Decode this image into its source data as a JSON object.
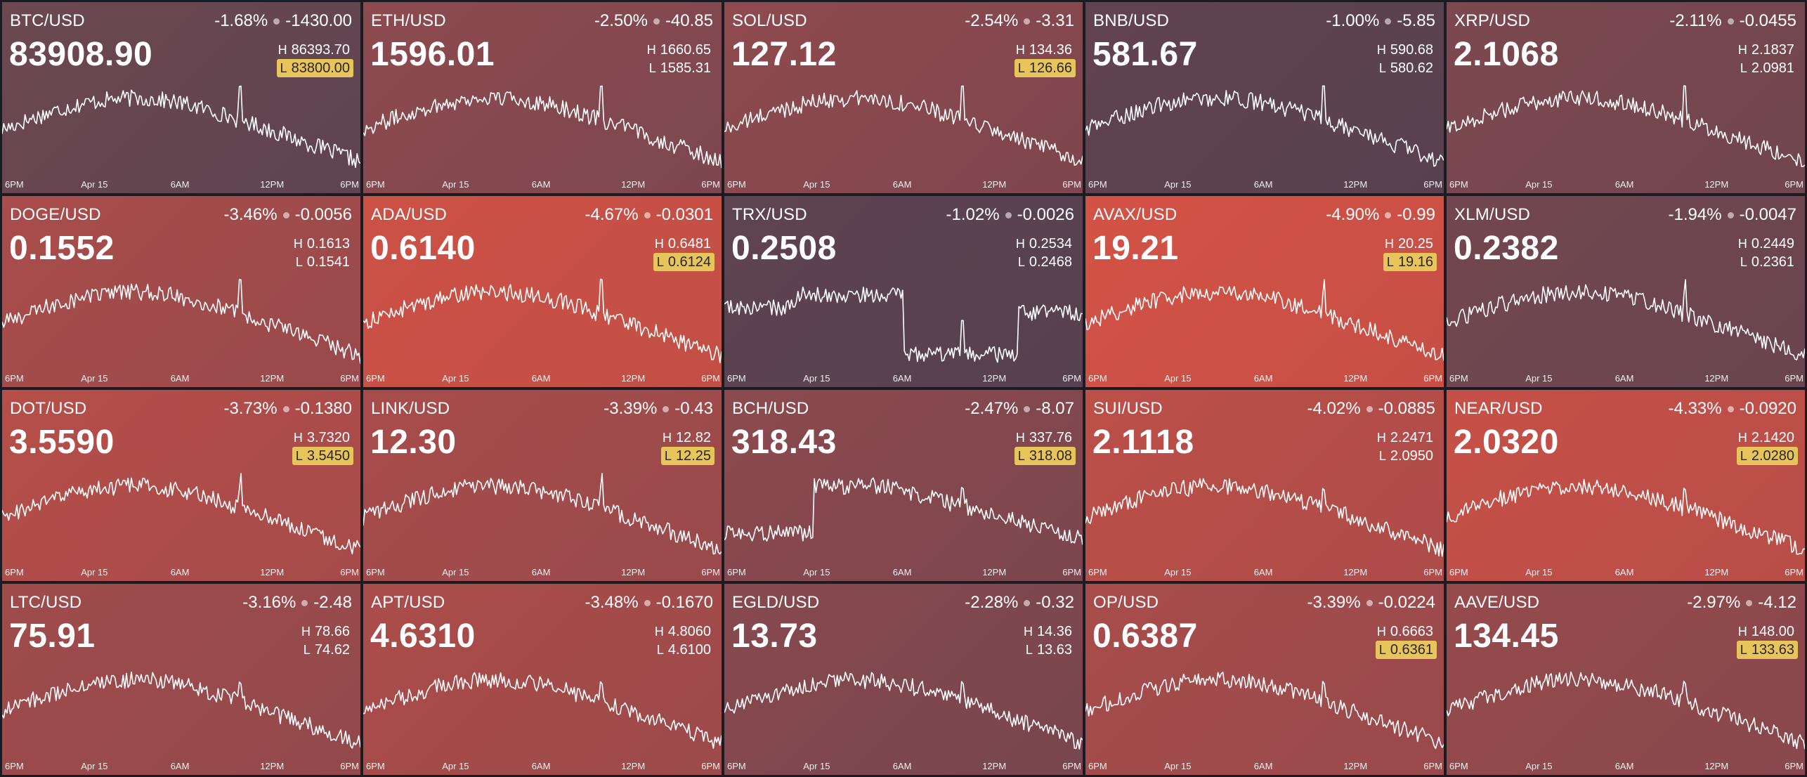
{
  "time_axis": [
    "6PM",
    "Apr 15",
    "6AM",
    "12PM",
    "6PM"
  ],
  "tiles": [
    {
      "symbol": "BTC/USD",
      "pct": "-1.68%",
      "abs": "-1430.00",
      "price": "83908.90",
      "high": "86393.70",
      "low": "83800.00",
      "low_hit": true,
      "bg": "#6c4850",
      "bg2": "#5e4450"
    },
    {
      "symbol": "ETH/USD",
      "pct": "-2.50%",
      "abs": "-40.85",
      "price": "1596.01",
      "high": "1660.65",
      "low": "1585.31",
      "low_hit": false,
      "bg": "#8d4a4f",
      "bg2": "#7d474f"
    },
    {
      "symbol": "SOL/USD",
      "pct": "-2.54%",
      "abs": "-3.31",
      "price": "127.12",
      "high": "134.36",
      "low": "126.66",
      "low_hit": true,
      "bg": "#8f4a4e",
      "bg2": "#7e464e"
    },
    {
      "symbol": "BNB/USD",
      "pct": "-1.00%",
      "abs": "-5.85",
      "price": "581.67",
      "high": "590.68",
      "low": "580.62",
      "low_hit": false,
      "bg": "#61434f",
      "bg2": "#58414f"
    },
    {
      "symbol": "XRP/USD",
      "pct": "-2.11%",
      "abs": "-0.0455",
      "price": "2.1068",
      "high": "2.1837",
      "low": "2.0981",
      "low_hit": false,
      "bg": "#7d484f",
      "bg2": "#70464f"
    },
    {
      "symbol": "DOGE/USD",
      "pct": "-3.46%",
      "abs": "-0.0056",
      "price": "0.1552",
      "high": "0.1613",
      "low": "0.1541",
      "low_hit": false,
      "bg": "#a94c4b",
      "bg2": "#994a4c"
    },
    {
      "symbol": "ADA/USD",
      "pct": "-4.67%",
      "abs": "-0.0301",
      "price": "0.6140",
      "high": "0.6481",
      "low": "0.6124",
      "low_hit": true,
      "bg": "#cd5145",
      "bg2": "#c24f46"
    },
    {
      "symbol": "TRX/USD",
      "pct": "-1.02%",
      "abs": "-0.0026",
      "price": "0.2508",
      "high": "0.2534",
      "low": "0.2468",
      "low_hit": false,
      "bg": "#5f4350",
      "bg2": "#56414f"
    },
    {
      "symbol": "AVAX/USD",
      "pct": "-4.90%",
      "abs": "-0.99",
      "price": "19.21",
      "high": "20.25",
      "low": "19.16",
      "low_hit": true,
      "bg": "#d35245",
      "bg2": "#c74f45"
    },
    {
      "symbol": "XLM/USD",
      "pct": "-1.94%",
      "abs": "-0.0047",
      "price": "0.2382",
      "high": "0.2449",
      "low": "0.2361",
      "low_hit": false,
      "bg": "#73464f",
      "bg2": "#69454f"
    },
    {
      "symbol": "DOT/USD",
      "pct": "-3.73%",
      "abs": "-0.1380",
      "price": "3.5590",
      "high": "3.7320",
      "low": "3.5450",
      "low_hit": true,
      "bg": "#b64e49",
      "bg2": "#a64b4a"
    },
    {
      "symbol": "LINK/USD",
      "pct": "-3.39%",
      "abs": "-0.43",
      "price": "12.30",
      "high": "12.82",
      "low": "12.25",
      "low_hit": true,
      "bg": "#a84c4b",
      "bg2": "#994a4c"
    },
    {
      "symbol": "BCH/USD",
      "pct": "-2.47%",
      "abs": "-8.07",
      "price": "318.43",
      "high": "337.76",
      "low": "318.08",
      "low_hit": true,
      "bg": "#8c4a4e",
      "bg2": "#7c464e"
    },
    {
      "symbol": "SUI/USD",
      "pct": "-4.02%",
      "abs": "-0.0885",
      "price": "2.1118",
      "high": "2.2471",
      "low": "2.0950",
      "low_hit": false,
      "bg": "#bd4f48",
      "bg2": "#ad4c49"
    },
    {
      "symbol": "NEAR/USD",
      "pct": "-4.33%",
      "abs": "-0.0920",
      "price": "2.0320",
      "high": "2.1420",
      "low": "2.0280",
      "low_hit": true,
      "bg": "#c65047",
      "bg2": "#b84e48"
    },
    {
      "symbol": "LTC/USD",
      "pct": "-3.16%",
      "abs": "-2.48",
      "price": "75.91",
      "high": "78.66",
      "low": "74.62",
      "low_hit": false,
      "bg": "#a04b4b",
      "bg2": "#92494c"
    },
    {
      "symbol": "APT/USD",
      "pct": "-3.48%",
      "abs": "-0.1670",
      "price": "4.6310",
      "high": "4.8060",
      "low": "4.6100",
      "low_hit": false,
      "bg": "#ab4c4a",
      "bg2": "#9c4a4b"
    },
    {
      "symbol": "EGLD/USD",
      "pct": "-2.28%",
      "abs": "-0.32",
      "price": "13.73",
      "high": "14.36",
      "low": "13.63",
      "low_hit": false,
      "bg": "#87494e",
      "bg2": "#78464e"
    },
    {
      "symbol": "OP/USD",
      "pct": "-3.39%",
      "abs": "-0.0224",
      "price": "0.6387",
      "high": "0.6663",
      "low": "0.6361",
      "low_hit": true,
      "bg": "#a84c4b",
      "bg2": "#994a4c"
    },
    {
      "symbol": "AAVE/USD",
      "pct": "-2.97%",
      "abs": "-4.12",
      "price": "134.45",
      "high": "148.00",
      "low": "133.63",
      "low_hit": true,
      "bg": "#964a4c",
      "bg2": "#88484d"
    }
  ]
}
